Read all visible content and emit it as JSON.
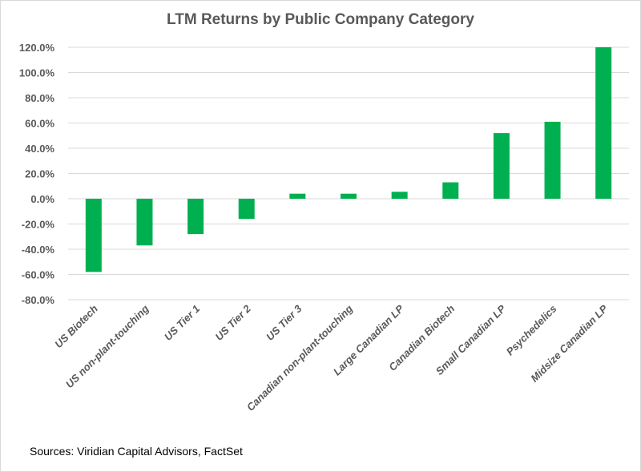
{
  "chart_data": {
    "type": "bar",
    "title": "LTM Returns by Public Company Category",
    "xlabel": "",
    "ylabel": "",
    "categories": [
      "US Biotech",
      "US non-plant-touching",
      "US Tier 1",
      "US Tier 2",
      "US Tier 3",
      "Canadian non-plant-touching",
      "Large Canadian LP",
      "Canadian Biotech",
      "Small Canadian LP",
      "Psychedelics",
      "Midsize Canadian LP"
    ],
    "values": [
      -58.0,
      -37.0,
      -28.0,
      -16.0,
      4.0,
      4.0,
      5.5,
      13.0,
      52.0,
      61.0,
      120.0
    ],
    "ylim": [
      -80,
      120
    ],
    "yticks": [
      120,
      100,
      80,
      60,
      40,
      20,
      0,
      -20,
      -40,
      -60,
      -80
    ],
    "ytick_labels": [
      "120.0%",
      "100.0%",
      "80.0%",
      "60.0%",
      "40.0%",
      "20.0%",
      "0.0%",
      "-20.0%",
      "-40.0%",
      "-60.0%",
      "-80.0%"
    ],
    "grid": true,
    "legend": "none",
    "bar_color": "#00b050",
    "source_note": "Sources: Viridian Capital Advisors, FactSet"
  }
}
